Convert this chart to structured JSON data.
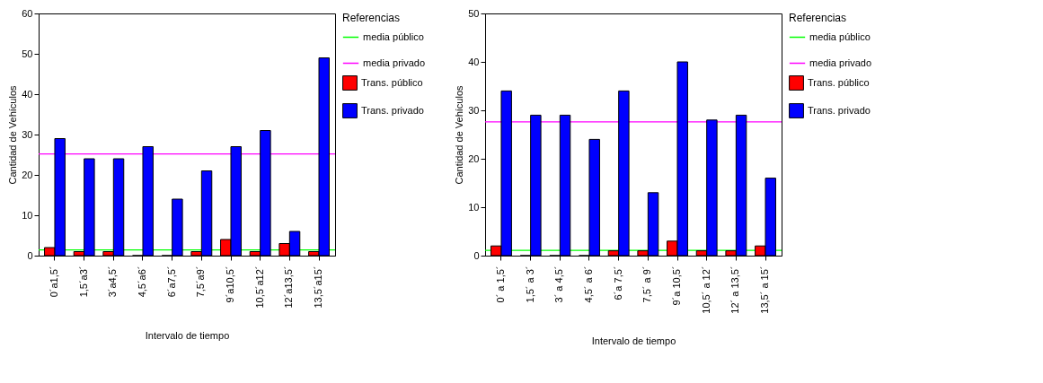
{
  "chart_data": [
    {
      "type": "bar",
      "xlabel": "Intervalo de tiempo",
      "ylabel": "Cantidad de Vehículos",
      "legend_title": "Referencias",
      "legend": "right",
      "grid": false,
      "categories": [
        "0´a1,5´",
        "1,5´a3´",
        "3´a4,5´",
        "4,5´a6´",
        "6´a7,5´",
        "7,5´a9´",
        "9´a10,5´",
        "10,5´a12´",
        "12´a13,5´",
        "13,5´a15´"
      ],
      "series": [
        {
          "name": "Trans. público",
          "color": "#ff0000",
          "values": [
            2,
            1,
            1,
            0,
            0,
            1,
            4,
            1,
            3,
            1
          ]
        },
        {
          "name": "Trans. privado",
          "color": "#0000ff",
          "values": [
            29,
            24,
            24,
            27,
            14,
            21,
            27,
            31,
            6,
            49
          ]
        }
      ],
      "ylim": [
        0,
        60
      ],
      "yticks": [
        0,
        10,
        20,
        30,
        40,
        50,
        60
      ],
      "ref_lines": [
        {
          "axis": "y",
          "value": 1.4,
          "label": "media público",
          "color": "#00ff00"
        },
        {
          "axis": "y",
          "value": 25.2,
          "label": "media privado",
          "color": "#ff00ff"
        }
      ]
    },
    {
      "type": "bar",
      "xlabel": "Intervalo de tiempo",
      "ylabel": "Cantidad de Vehículos",
      "legend_title": "Referencias",
      "legend": "right",
      "grid": false,
      "categories": [
        "0´ a 1,5´",
        "1,5´ a 3´",
        "3´ a 4,5´",
        "4,5´ a 6´",
        "6´a 7,5´",
        "7,5´ a 9´",
        "9´a 10,5´",
        "10,5´ a 12´",
        "12´ a 13,5´",
        "13,5´ a 15´"
      ],
      "series": [
        {
          "name": "Trans. público",
          "color": "#ff0000",
          "values": [
            2,
            0,
            0,
            0,
            1,
            1,
            3,
            1,
            1,
            2
          ]
        },
        {
          "name": "Trans. privado",
          "color": "#0000ff",
          "values": [
            34,
            29,
            29,
            24,
            34,
            13,
            40,
            28,
            29,
            16
          ]
        }
      ],
      "ylim": [
        0,
        50
      ],
      "yticks": [
        0,
        10,
        20,
        30,
        40,
        50
      ],
      "ref_lines": [
        {
          "axis": "y",
          "value": 1.1,
          "label": "media público",
          "color": "#00ff00"
        },
        {
          "axis": "y",
          "value": 27.6,
          "label": "media privado",
          "color": "#ff00ff"
        }
      ]
    }
  ]
}
